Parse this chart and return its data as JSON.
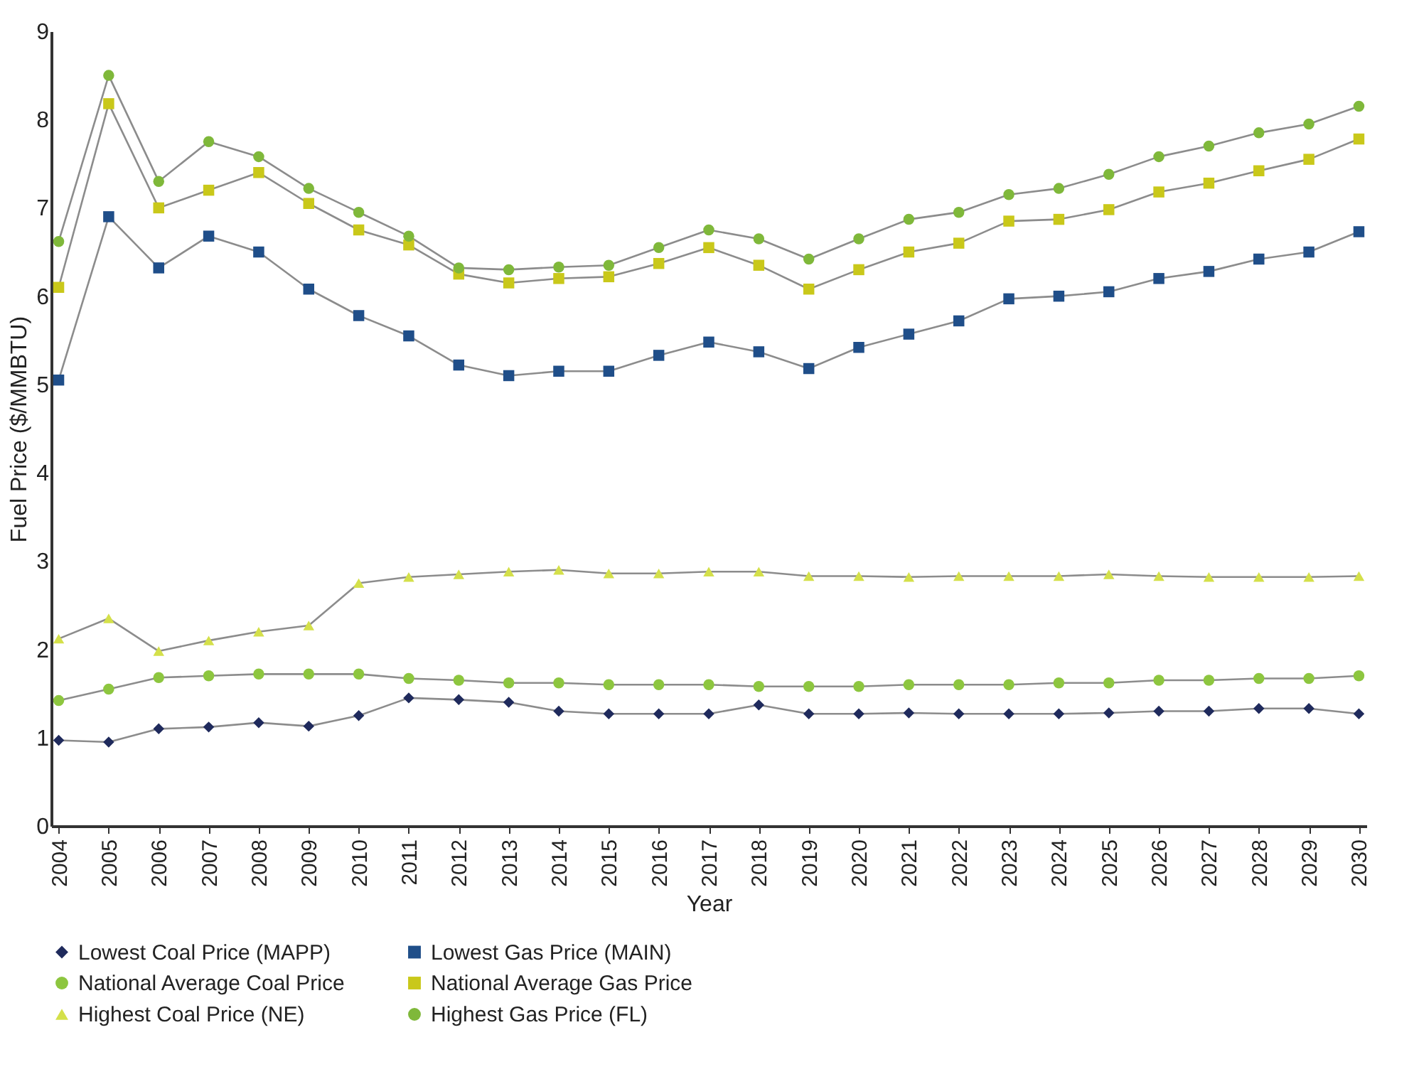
{
  "chart_data": {
    "type": "line",
    "xlabel": "Year",
    "ylabel": "Fuel Price ($/MMBTU)",
    "categories": [
      "2004",
      "2005",
      "2006",
      "2007",
      "2008",
      "2009",
      "2010",
      "2011",
      "2012",
      "2013",
      "2014",
      "2015",
      "2016",
      "2017",
      "2018",
      "2019",
      "2020",
      "2021",
      "2022",
      "2023",
      "2024",
      "2025",
      "2026",
      "2027",
      "2028",
      "2029",
      "2030"
    ],
    "ylim": [
      0,
      9
    ],
    "yticks": [
      0,
      1,
      2,
      3,
      4,
      5,
      6,
      7,
      8,
      9
    ],
    "grid": false,
    "legend": "bottom",
    "series": [
      {
        "name": "Lowest Coal Price (MAPP)",
        "color": "#1f2a5c",
        "marker": "diamond",
        "values": [
          0.97,
          0.95,
          1.1,
          1.12,
          1.17,
          1.13,
          1.25,
          1.45,
          1.43,
          1.4,
          1.3,
          1.27,
          1.27,
          1.27,
          1.37,
          1.27,
          1.27,
          1.28,
          1.27,
          1.27,
          1.27,
          1.28,
          1.3,
          1.3,
          1.33,
          1.33,
          1.27
        ]
      },
      {
        "name": "Lowest Gas Price (MAIN)",
        "color": "#1f4e89",
        "marker": "square",
        "values": [
          5.05,
          6.9,
          6.32,
          6.68,
          6.5,
          6.08,
          5.78,
          5.55,
          5.22,
          5.1,
          5.15,
          5.15,
          5.33,
          5.48,
          5.37,
          5.18,
          5.42,
          5.57,
          5.72,
          5.97,
          6.0,
          6.05,
          6.2,
          6.28,
          6.42,
          6.5,
          6.73
        ]
      },
      {
        "name": "National Average Coal Price",
        "color": "#8dc63f",
        "marker": "circle",
        "values": [
          1.42,
          1.55,
          1.68,
          1.7,
          1.72,
          1.72,
          1.72,
          1.67,
          1.65,
          1.62,
          1.62,
          1.6,
          1.6,
          1.6,
          1.58,
          1.58,
          1.58,
          1.6,
          1.6,
          1.6,
          1.62,
          1.62,
          1.65,
          1.65,
          1.67,
          1.67,
          1.7
        ]
      },
      {
        "name": "National Average Gas Price",
        "color": "#c9c81a",
        "marker": "square",
        "values": [
          6.1,
          8.18,
          7.0,
          7.2,
          7.4,
          7.05,
          6.75,
          6.58,
          6.25,
          6.15,
          6.2,
          6.22,
          6.37,
          6.55,
          6.35,
          6.08,
          6.3,
          6.5,
          6.6,
          6.85,
          6.87,
          6.98,
          7.18,
          7.28,
          7.42,
          7.55,
          7.78
        ]
      },
      {
        "name": "Highest Coal Price (NE)",
        "color": "#d4e04a",
        "marker": "triangle",
        "values": [
          2.12,
          2.35,
          1.98,
          2.1,
          2.2,
          2.27,
          2.75,
          2.82,
          2.85,
          2.88,
          2.9,
          2.86,
          2.86,
          2.88,
          2.88,
          2.83,
          2.83,
          2.82,
          2.83,
          2.83,
          2.83,
          2.85,
          2.83,
          2.82,
          2.82,
          2.82,
          2.83
        ]
      },
      {
        "name": "Highest Gas Price (FL)",
        "color": "#7fb83a",
        "marker": "circle",
        "values": [
          6.62,
          8.5,
          7.3,
          7.75,
          7.58,
          7.22,
          6.95,
          6.68,
          6.32,
          6.3,
          6.33,
          6.35,
          6.55,
          6.75,
          6.65,
          6.42,
          6.65,
          6.87,
          6.95,
          7.15,
          7.22,
          7.38,
          7.58,
          7.7,
          7.85,
          7.95,
          8.15
        ]
      }
    ]
  }
}
